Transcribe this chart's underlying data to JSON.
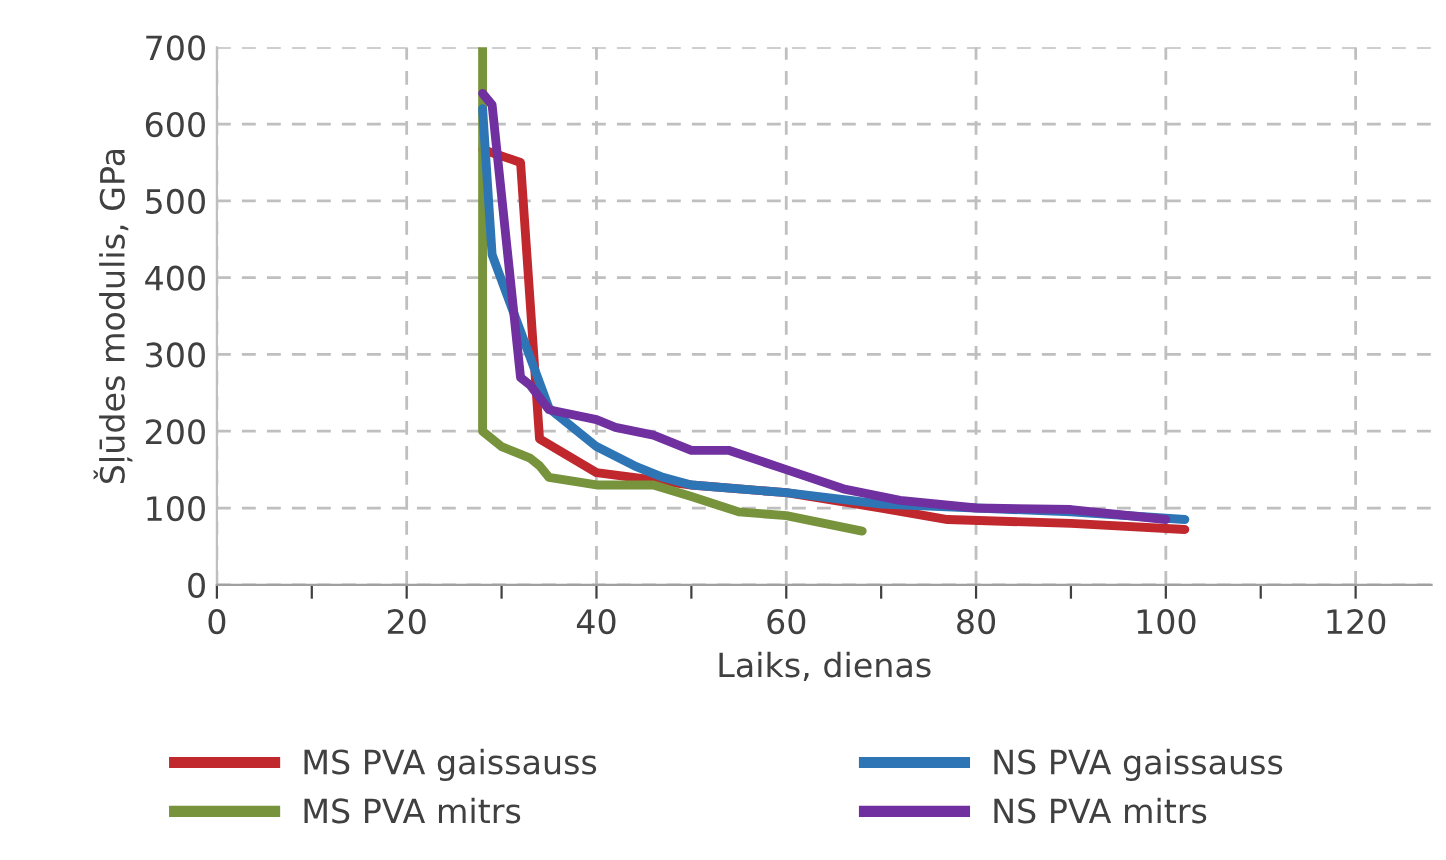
{
  "chart_data": {
    "type": "line",
    "xlabel": "Laiks, dienas",
    "ylabel": "Šļūdes modulis, GPa",
    "xlim": [
      0,
      128
    ],
    "xticks": [
      0,
      {
        "value": 10,
        "label": null
      },
      20,
      {
        "value": 30,
        "label": null
      },
      40,
      {
        "value": 50,
        "label": null
      },
      60,
      {
        "value": 70,
        "label": null
      },
      80,
      {
        "value": 90,
        "label": null
      },
      100,
      {
        "value": 110,
        "label": null
      },
      120
    ],
    "ylim": [
      0,
      700
    ],
    "yticks": [
      0,
      100,
      200,
      300,
      400,
      500,
      600,
      700
    ],
    "grid": true,
    "legend": "bottom",
    "line_style": "solid",
    "marker": "none",
    "series": [
      {
        "name": "MS PVA gaissauss",
        "color": "#c0282d",
        "x": [
          28,
          32,
          34,
          40,
          50,
          60,
          70,
          77,
          90,
          102
        ],
        "values": [
          567,
          550,
          190,
          146,
          130,
          120,
          100,
          85,
          80,
          72
        ]
      },
      {
        "name": "MS PVA mitrs",
        "color": "#77933c",
        "x": [
          28,
          28,
          30,
          33,
          34,
          35,
          40,
          46,
          50,
          55,
          60,
          68
        ],
        "values": [
          700,
          200,
          180,
          165,
          155,
          140,
          130,
          130,
          115,
          95,
          90,
          70
        ]
      },
      {
        "name": "NS PVA gaissauss",
        "color": "#2e75b6",
        "x": [
          28,
          29,
          32,
          35,
          40,
          44,
          47,
          50,
          60,
          70,
          80,
          90,
          102
        ],
        "values": [
          620,
          430,
          330,
          230,
          180,
          155,
          140,
          130,
          120,
          105,
          100,
          95,
          85
        ]
      },
      {
        "name": "NS PVA mitrs",
        "color": "#7030a0",
        "x": [
          28,
          29,
          32,
          33,
          35,
          40,
          42,
          46,
          50,
          54,
          60,
          66,
          72,
          80,
          90,
          100
        ],
        "values": [
          640,
          625,
          270,
          260,
          228,
          215,
          205,
          195,
          175,
          175,
          150,
          125,
          110,
          100,
          98,
          85
        ]
      }
    ]
  }
}
